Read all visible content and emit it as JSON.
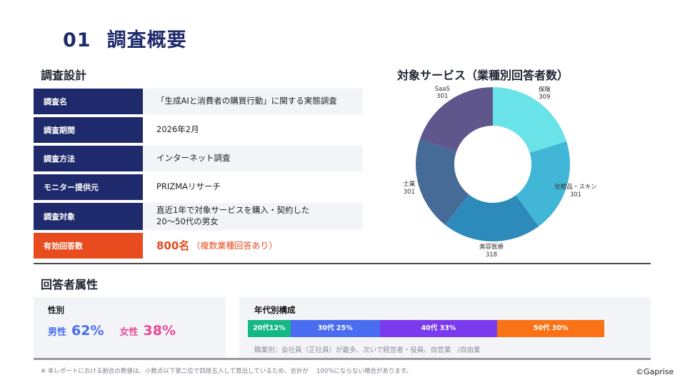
{
  "header": {
    "number": "01",
    "title": "調査概要"
  },
  "survey_design": {
    "title": "調査設計",
    "rows": [
      {
        "label": "調査名",
        "value": "「生成AIと消費者の購買行動」に関する実態調査"
      },
      {
        "label": "調査期間",
        "value": "2026年2月"
      },
      {
        "label": "調査方法",
        "value": "インターネット調査"
      },
      {
        "label": "モニター提供元",
        "value": "PRIZMAリサーチ"
      },
      {
        "label": "調査対象",
        "value_line1": "直近1年で対象サービスを購入・契約した",
        "value_line2": "20〜50代の男女"
      },
      {
        "label": "有効回答数",
        "value_big": "800名",
        "value_small": "（複数業種回答あり）"
      }
    ]
  },
  "colors": {
    "navy": "#1e2a6b",
    "accent_orange": "#e84c1e",
    "male": "#4a6cf0",
    "female": "#e84a97",
    "panel_bg": "#f3f4f8"
  },
  "chart_data": {
    "type": "pie",
    "style": "donut",
    "title": "対象サービス（業種別回答者数）",
    "categories": [
      "保険",
      "化粧品・スキン",
      "美容医療",
      "士業",
      "SaaS"
    ],
    "values": [
      309,
      301,
      318,
      301,
      301
    ],
    "colors": [
      "#6ae3e8",
      "#42b6d6",
      "#2c8bba",
      "#456b96",
      "#5f578c"
    ],
    "start_angle": "12 o'clock",
    "direction": "clockwise",
    "legend": "none (labels outside slices)"
  },
  "respondents": {
    "title": "回答者属性",
    "gender": {
      "title": "性別",
      "male_label": "男性",
      "male_value": "62%",
      "female_label": "女性",
      "female_value": "38%"
    },
    "age": {
      "title": "年代別構成",
      "segments": [
        {
          "label": "20代",
          "pct": "12%",
          "width": 12,
          "color": "#14b882"
        },
        {
          "label": "30代",
          "pct": "25%",
          "width": 25,
          "color": "#4a6cf0"
        },
        {
          "label": "40代",
          "pct": "33%",
          "width": 33,
          "color": "#7c3aed"
        },
        {
          "label": "50代",
          "pct": "30%",
          "width": 30,
          "color": "#f97316"
        }
      ],
      "note": "職業別：会社員（正社員）が最多、次いで経営者・役員、自営業　/自由業"
    }
  },
  "footer": {
    "note": "※ 本レポートにおける割合の数値は、小数点以下第二位で四捨五入して算出しているため、合計が　 100%にならない場合があります。",
    "copyright": "©Gaprise"
  }
}
